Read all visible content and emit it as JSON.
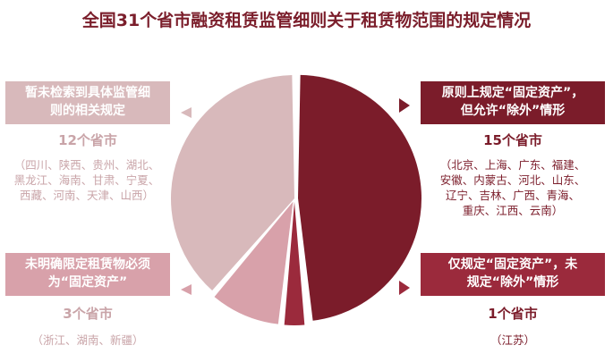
{
  "title": "全国31个省市融资租赁监管细则关于租赁物范围的规定情况",
  "colors": {
    "dark": "#7b1c2a",
    "mid": "#9b2a3c",
    "pink": "#d8a1aa",
    "light": "#d8b9bb",
    "muted_text": "#c9a4a8"
  },
  "chart_data": {
    "type": "pie",
    "unit": "个省市",
    "slices": [
      {
        "label_lines": [
          "原则上规定“固定资产”，",
          "但允许“除外”情形"
        ],
        "value": 15,
        "count_text": "15个省市",
        "provinces_lines": [
          "（北京、上海、广东、福建、",
          "安徽、内蒙古、河北、山东、",
          "辽宁、吉林、广西、青海、",
          "重庆、江西、云南）"
        ],
        "color": "#7b1c2a"
      },
      {
        "label_lines": [
          "仅规定“固定资产”，未",
          "规定“除外”情形"
        ],
        "value": 1,
        "count_text": "1个省市",
        "provinces_lines": [
          "（江苏）"
        ],
        "color": "#9b2a3c"
      },
      {
        "label_lines": [
          "未明确限定租赁物必须",
          "为“固定资产”"
        ],
        "value": 3,
        "count_text": "3个省市",
        "provinces_lines": [
          "（浙江、湖南、新疆）"
        ],
        "color": "#d8a1aa"
      },
      {
        "label_lines": [
          "暂未检索到具体监管细",
          "则的相关规定"
        ],
        "value": 12,
        "count_text": "12个省市",
        "provinces_lines": [
          "（四川、陕西、贵州、湖北、",
          "黑龙江、海南、甘肃、宁夏、",
          "西藏、河南、天津、山西）"
        ],
        "color": "#d8b9bb"
      }
    ]
  }
}
